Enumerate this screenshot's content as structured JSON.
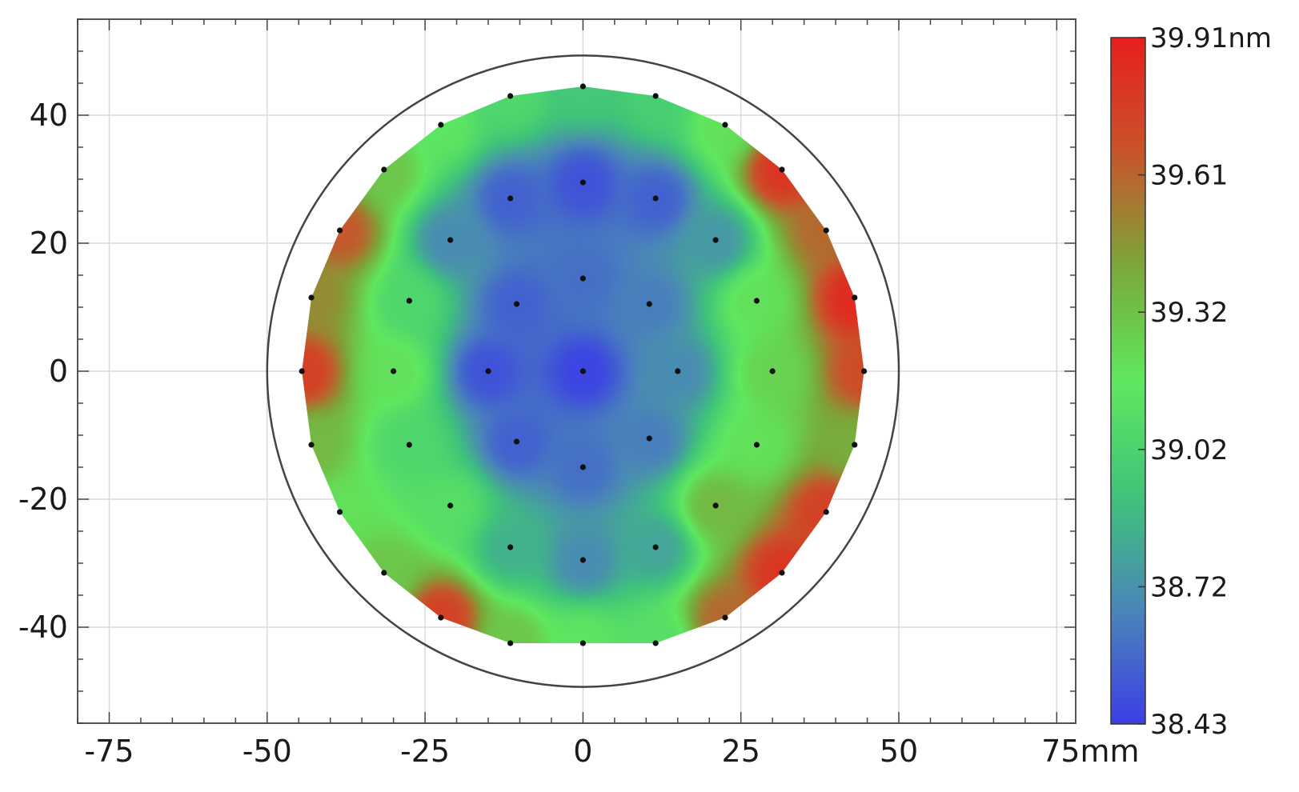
{
  "chart_data": {
    "type": "heatmap",
    "title": "",
    "xlabel": "",
    "ylabel": "",
    "x_unit": "mm",
    "z_unit": "nm",
    "xlim": [
      -80,
      78
    ],
    "ylim": [
      -55,
      55
    ],
    "x_ticks": [
      -75,
      -50,
      -25,
      0,
      25,
      50,
      75
    ],
    "x_tick_labels": [
      "-75",
      "-50",
      "-25",
      "0",
      "25",
      "50",
      "75mm"
    ],
    "y_ticks": [
      40,
      20,
      0,
      -20,
      -40
    ],
    "y_tick_labels": [
      "40",
      "20",
      "0",
      "-20",
      "-40"
    ],
    "grid": true,
    "wafer_radius": 50,
    "colorbar": {
      "min": 38.43,
      "max": 39.91,
      "tick_labels": [
        "39.91nm",
        "39.61",
        "39.32",
        "39.02",
        "38.72",
        "38.43"
      ],
      "colors": [
        "#3b3fe6",
        "#4a86b8",
        "#3fc47a",
        "#5fe85f",
        "#7aa83a",
        "#c8542a",
        "#e81e1e"
      ]
    },
    "measurement_points": [
      {
        "x": 0,
        "y": 44.5,
        "value": 38.95
      },
      {
        "x": -11.5,
        "y": 43,
        "value": 39.05
      },
      {
        "x": 11.5,
        "y": 43,
        "value": 39.0
      },
      {
        "x": -22.5,
        "y": 38.5,
        "value": 39.15
      },
      {
        "x": 22.5,
        "y": 38.5,
        "value": 39.2
      },
      {
        "x": -31.5,
        "y": 31.5,
        "value": 39.3
      },
      {
        "x": 31.5,
        "y": 31.5,
        "value": 39.8
      },
      {
        "x": -38.5,
        "y": 22,
        "value": 39.65
      },
      {
        "x": 38.5,
        "y": 22,
        "value": 39.6
      },
      {
        "x": -43,
        "y": 11.5,
        "value": 39.5
      },
      {
        "x": 43,
        "y": 11.5,
        "value": 39.85
      },
      {
        "x": -44.5,
        "y": 0,
        "value": 39.75
      },
      {
        "x": 44.5,
        "y": 0,
        "value": 39.7
      },
      {
        "x": -43,
        "y": -11.5,
        "value": 39.35
      },
      {
        "x": 43,
        "y": -11.5,
        "value": 39.4
      },
      {
        "x": -38.5,
        "y": -22,
        "value": 39.2
      },
      {
        "x": 38.5,
        "y": -22,
        "value": 39.75
      },
      {
        "x": -31.5,
        "y": -31.5,
        "value": 39.3
      },
      {
        "x": 31.5,
        "y": -31.5,
        "value": 39.8
      },
      {
        "x": -22.5,
        "y": -38.5,
        "value": 39.75
      },
      {
        "x": 22.5,
        "y": -38.5,
        "value": 39.6
      },
      {
        "x": -11.5,
        "y": -42.5,
        "value": 39.3
      },
      {
        "x": 0,
        "y": -42.5,
        "value": 39.15
      },
      {
        "x": 11.5,
        "y": -42.5,
        "value": 39.1
      },
      {
        "x": 0,
        "y": 29.5,
        "value": 38.5
      },
      {
        "x": -11.5,
        "y": 27,
        "value": 38.55
      },
      {
        "x": 11.5,
        "y": 27,
        "value": 38.55
      },
      {
        "x": -21,
        "y": 20.5,
        "value": 38.7
      },
      {
        "x": 21,
        "y": 20.5,
        "value": 38.75
      },
      {
        "x": -27.5,
        "y": 11,
        "value": 39.05
      },
      {
        "x": 27.5,
        "y": 11,
        "value": 39.2
      },
      {
        "x": -30,
        "y": 0,
        "value": 39.2
      },
      {
        "x": 30,
        "y": 0,
        "value": 39.25
      },
      {
        "x": -27.5,
        "y": -11.5,
        "value": 39.05
      },
      {
        "x": 27.5,
        "y": -11.5,
        "value": 39.2
      },
      {
        "x": -21,
        "y": -21,
        "value": 39.1
      },
      {
        "x": 21,
        "y": -21,
        "value": 39.35
      },
      {
        "x": -11.5,
        "y": -27.5,
        "value": 38.85
      },
      {
        "x": 11.5,
        "y": -27.5,
        "value": 38.8
      },
      {
        "x": 0,
        "y": -29.5,
        "value": 38.7
      },
      {
        "x": 0,
        "y": 14.5,
        "value": 38.6
      },
      {
        "x": -10.5,
        "y": 10.5,
        "value": 38.55
      },
      {
        "x": 10.5,
        "y": 10.5,
        "value": 38.65
      },
      {
        "x": -15,
        "y": 0,
        "value": 38.5
      },
      {
        "x": 15,
        "y": 0,
        "value": 38.7
      },
      {
        "x": 0,
        "y": 0,
        "value": 38.45
      },
      {
        "x": -10.5,
        "y": -11,
        "value": 38.55
      },
      {
        "x": 10.5,
        "y": -10.5,
        "value": 38.65
      },
      {
        "x": 0,
        "y": -15,
        "value": 38.6
      }
    ]
  }
}
